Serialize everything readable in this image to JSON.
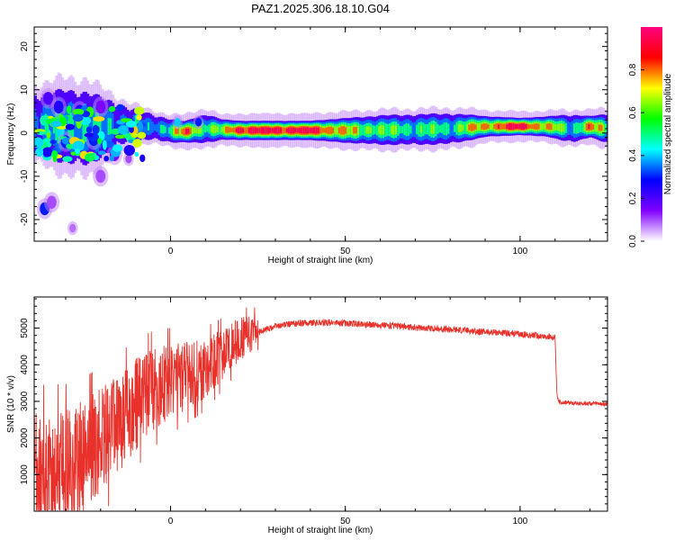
{
  "chart_data": [
    {
      "type": "heatmap",
      "title": "PAZ1.2025.306.18.10.G04",
      "xlabel": "Height of straight line (km)",
      "ylabel": "Frequency (Hz)",
      "xlim": [
        -39,
        125
      ],
      "ylim": [
        -25,
        24.5
      ],
      "x_ticks": [
        0,
        50,
        100
      ],
      "y_ticks": [
        -20,
        -10,
        0,
        10,
        20
      ],
      "x_tick_labels": [
        "0",
        "50",
        "100"
      ],
      "y_tick_labels": [
        "-20",
        "-10",
        "0",
        "10",
        "20"
      ],
      "colorbar": {
        "label": "Normalized spectral amplitude",
        "range": [
          0,
          1
        ],
        "ticks": [
          0.0,
          0.2,
          0.4,
          0.6,
          0.8
        ],
        "tick_labels": [
          "0.0",
          "0.2",
          "0.4",
          "0.6",
          "0.8"
        ],
        "colors": [
          "#ffffff",
          "#8000ff",
          "#0000ff",
          "#00ffff",
          "#00ff00",
          "#ffff00",
          "#ff0000",
          "#ff0080"
        ]
      },
      "ridge": [
        {
          "x": -36,
          "freq": 2.0,
          "amp": 0.4,
          "spread": 3.5
        },
        {
          "x": -30,
          "freq": 1.5,
          "amp": 0.45,
          "spread": 4.0
        },
        {
          "x": -24,
          "freq": 1.0,
          "amp": 0.45,
          "spread": 4.0
        },
        {
          "x": -18,
          "freq": 1.5,
          "amp": 0.4,
          "spread": 3.0
        },
        {
          "x": -12,
          "freq": 2.0,
          "amp": 0.35,
          "spread": 2.0
        },
        {
          "x": -6,
          "freq": 1.5,
          "amp": 0.35,
          "spread": 1.5
        },
        {
          "x": 0,
          "freq": 0.5,
          "amp": 0.55,
          "spread": 1.2
        },
        {
          "x": 4,
          "freq": 0.3,
          "amp": 0.8,
          "spread": 1.0
        },
        {
          "x": 10,
          "freq": 1.0,
          "amp": 0.55,
          "spread": 1.5
        },
        {
          "x": 15,
          "freq": 0.8,
          "amp": 0.6,
          "spread": 1.0
        },
        {
          "x": 20,
          "freq": 0.6,
          "amp": 0.95,
          "spread": 0.9
        },
        {
          "x": 30,
          "freq": 0.6,
          "amp": 0.95,
          "spread": 0.9
        },
        {
          "x": 40,
          "freq": 0.6,
          "amp": 0.95,
          "spread": 0.9
        },
        {
          "x": 50,
          "freq": 0.6,
          "amp": 0.7,
          "spread": 1.2
        },
        {
          "x": 60,
          "freq": 0.7,
          "amp": 0.55,
          "spread": 1.5
        },
        {
          "x": 70,
          "freq": 0.8,
          "amp": 0.5,
          "spread": 1.6
        },
        {
          "x": 80,
          "freq": 1.0,
          "amp": 0.5,
          "spread": 1.6
        },
        {
          "x": 90,
          "freq": 1.5,
          "amp": 0.75,
          "spread": 1.0
        },
        {
          "x": 100,
          "freq": 1.5,
          "amp": 0.95,
          "spread": 0.8
        },
        {
          "x": 108,
          "freq": 1.5,
          "amp": 0.7,
          "spread": 1.0
        },
        {
          "x": 115,
          "freq": 1.0,
          "amp": 0.45,
          "spread": 1.5
        },
        {
          "x": 120,
          "freq": 1.5,
          "amp": 0.8,
          "spread": 1.0
        },
        {
          "x": 125,
          "freq": 1.0,
          "amp": 0.5,
          "spread": 1.5
        }
      ],
      "blobs": [
        {
          "x": -36,
          "freq": -17.5,
          "amp": 0.3,
          "spread": 1.5
        },
        {
          "x": -34,
          "freq": -16,
          "amp": 0.1,
          "spread": 1.5
        },
        {
          "x": -28,
          "freq": -22,
          "amp": 0.08,
          "spread": 1.0
        },
        {
          "x": -35,
          "freq": 8,
          "amp": 0.2,
          "spread": 1.5
        },
        {
          "x": -32,
          "freq": 6,
          "amp": 0.25,
          "spread": 1.5
        },
        {
          "x": -26,
          "freq": 5,
          "amp": 0.25,
          "spread": 1.5
        },
        {
          "x": -20,
          "freq": 6,
          "amp": 0.15,
          "spread": 1.5
        },
        {
          "x": -30,
          "freq": -2,
          "amp": 0.3,
          "spread": 1.5
        },
        {
          "x": -22,
          "freq": -1.5,
          "amp": 0.3,
          "spread": 1.5
        },
        {
          "x": -16,
          "freq": -5,
          "amp": 0.15,
          "spread": 1.5
        },
        {
          "x": -20,
          "freq": -10,
          "amp": 0.1,
          "spread": 1.5
        },
        {
          "x": -12,
          "freq": -6,
          "amp": 0.1,
          "spread": 1.0
        },
        {
          "x": 2,
          "freq": 2.5,
          "amp": 0.4,
          "spread": 1.0
        },
        {
          "x": 8,
          "freq": 2.5,
          "amp": 0.3,
          "spread": 1.0
        }
      ]
    },
    {
      "type": "line",
      "xlabel": "Height of straight line (km)",
      "ylabel": "SNR (10 * v/v)",
      "xlim": [
        -39,
        125
      ],
      "ylim": [
        0,
        5850
      ],
      "x_ticks": [
        0,
        50,
        100
      ],
      "y_ticks": [
        1000,
        2000,
        3000,
        4000,
        5000
      ],
      "x_tick_labels": [
        "0",
        "50",
        "100"
      ],
      "y_tick_labels": [
        "1000",
        "2000",
        "3000",
        "4000",
        "5000"
      ],
      "series": [
        {
          "name": "SNR",
          "color": "#e8312a",
          "points": [
            [
              -39,
              800
            ],
            [
              -36,
              900
            ],
            [
              -33,
              1000
            ],
            [
              -30,
              1100
            ],
            [
              -27,
              1300
            ],
            [
              -24,
              1500
            ],
            [
              -21,
              1800
            ],
            [
              -18,
              2100
            ],
            [
              -15,
              2400
            ],
            [
              -12,
              2700
            ],
            [
              -9,
              3000
            ],
            [
              -6,
              3250
            ],
            [
              -3,
              3450
            ],
            [
              0,
              3550
            ],
            [
              3,
              3650
            ],
            [
              6,
              3750
            ],
            [
              9,
              3850
            ],
            [
              12,
              4050
            ],
            [
              15,
              4300
            ],
            [
              18,
              4550
            ],
            [
              21,
              4750
            ],
            [
              24,
              4850
            ],
            [
              27,
              4950
            ],
            [
              30,
              5050
            ],
            [
              35,
              5120
            ],
            [
              40,
              5150
            ],
            [
              45,
              5150
            ],
            [
              50,
              5130
            ],
            [
              55,
              5110
            ],
            [
              60,
              5080
            ],
            [
              65,
              5050
            ],
            [
              70,
              5020
            ],
            [
              75,
              4990
            ],
            [
              80,
              4960
            ],
            [
              85,
              4930
            ],
            [
              90,
              4900
            ],
            [
              95,
              4870
            ],
            [
              100,
              4830
            ],
            [
              105,
              4790
            ],
            [
              110,
              4740
            ],
            [
              110.5,
              3200
            ],
            [
              111,
              2980
            ],
            [
              115,
              2960
            ],
            [
              120,
              2940
            ],
            [
              125,
              2920
            ]
          ]
        }
      ]
    }
  ]
}
